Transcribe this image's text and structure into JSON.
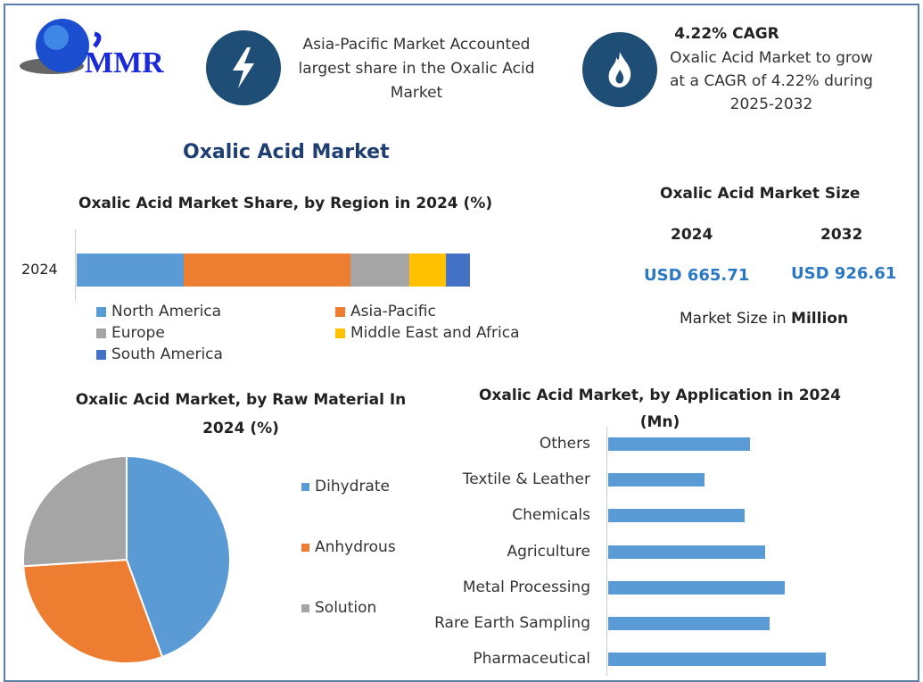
{
  "logo": {
    "text": "MMR"
  },
  "info1": {
    "icon": "lightning-icon",
    "text": "Asia-Pacific Market Accounted largest share in the Oxalic Acid Market"
  },
  "info2": {
    "icon": "flame-icon",
    "title": "4.22% CAGR",
    "text": "Oxalic Acid Market to grow at a CAGR of 4.22% during 2025-2032"
  },
  "page_title": "Oxalic Acid Market",
  "market_size": {
    "title": "Oxalic Acid Market Size",
    "year1": "2024",
    "year2": "2032",
    "value1": "USD 665.71",
    "value2": "USD 926.61",
    "note_prefix": "Market Size in ",
    "note_bold": "Million"
  },
  "chart_data": [
    {
      "type": "bar",
      "stacked": true,
      "orientation": "horizontal",
      "title": "Oxalic Acid Market Share, by Region in 2024 (%)",
      "categories": [
        "2024"
      ],
      "series": [
        {
          "name": "North America",
          "values": [
            27.2
          ],
          "color": "#5b9bd5"
        },
        {
          "name": "Asia-Pacific",
          "values": [
            42.4
          ],
          "color": "#ed7d31"
        },
        {
          "name": "Europe",
          "values": [
            15.0
          ],
          "color": "#a5a5a5"
        },
        {
          "name": "Middle East and Africa",
          "values": [
            9.3
          ],
          "color": "#ffc000"
        },
        {
          "name": "South America",
          "values": [
            6.1
          ],
          "color": "#4472c4"
        }
      ],
      "legend": "bottom"
    },
    {
      "type": "pie",
      "title": "Oxalic Acid Market, by Raw Material In 2024 (%)",
      "labels": [
        "Dihydrate",
        "Anhydrous",
        "Solution"
      ],
      "values": [
        44.4,
        29.6,
        26.0
      ],
      "colors": [
        "#5b9bd5",
        "#ed7d31",
        "#a5a5a5"
      ],
      "legend": "right"
    },
    {
      "type": "bar",
      "orientation": "horizontal",
      "title": "Oxalic Acid Market, by Application in 2024 (Mn)",
      "categories": [
        "Others",
        "Textile & Leather",
        "Chemicals",
        "Agriculture",
        "Metal Processing",
        "Rare Earth Sampling",
        "Pharmaceutical"
      ],
      "values": [
        86.8,
        59.0,
        83.6,
        96.1,
        108.1,
        98.8,
        133.3
      ],
      "color": "#5b9bd5"
    }
  ]
}
